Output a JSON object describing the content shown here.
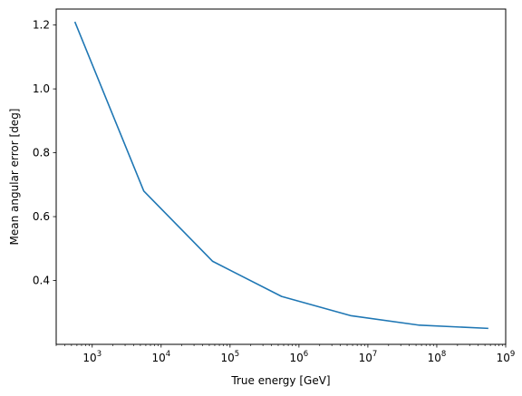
{
  "chart_data": {
    "type": "line",
    "xlabel": "True energy [GeV]",
    "ylabel": "Mean angular error [deg]",
    "xscale": "log",
    "xlim": [
      300,
      1000000000
    ],
    "ylim": [
      0.2,
      1.25
    ],
    "grid": false,
    "x_ticks": [
      {
        "value": 1000,
        "base": "10",
        "exp": "3"
      },
      {
        "value": 10000,
        "base": "10",
        "exp": "4"
      },
      {
        "value": 100000,
        "base": "10",
        "exp": "5"
      },
      {
        "value": 1000000,
        "base": "10",
        "exp": "6"
      },
      {
        "value": 10000000,
        "base": "10",
        "exp": "7"
      },
      {
        "value": 100000000,
        "base": "10",
        "exp": "8"
      },
      {
        "value": 1000000000,
        "base": "10",
        "exp": "9"
      }
    ],
    "y_ticks": [
      {
        "value": 0.4,
        "label": "0.4"
      },
      {
        "value": 0.6,
        "label": "0.6"
      },
      {
        "value": 0.8,
        "label": "0.8"
      },
      {
        "value": 1.0,
        "label": "1.0"
      },
      {
        "value": 1.2,
        "label": "1.2"
      }
    ],
    "series": [
      {
        "color": "#1f77b4",
        "x": [
          560,
          5600,
          56000,
          560000,
          5600000,
          56000000,
          560000000
        ],
        "y": [
          1.21,
          0.68,
          0.46,
          0.35,
          0.29,
          0.26,
          0.25
        ]
      }
    ]
  }
}
